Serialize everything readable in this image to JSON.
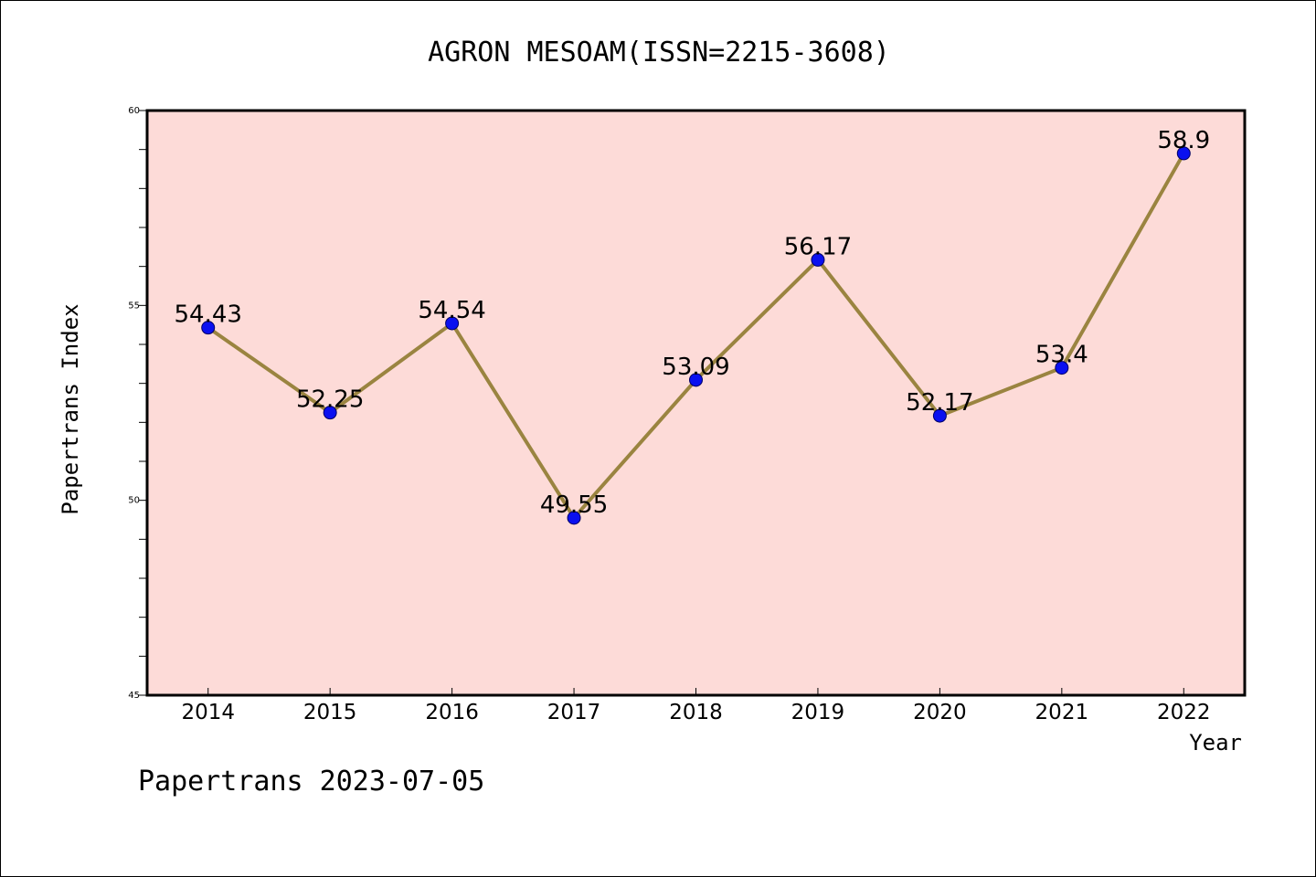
{
  "chart_data": {
    "type": "line",
    "title": "AGRON MESOAM(ISSN=2215-3608)",
    "xlabel": "Year",
    "ylabel": "Papertrans Index",
    "footer": "Papertrans 2023-07-05",
    "categories": [
      "2014",
      "2015",
      "2016",
      "2017",
      "2018",
      "2019",
      "2020",
      "2021",
      "2022"
    ],
    "values": [
      54.43,
      52.25,
      54.54,
      49.55,
      53.09,
      56.17,
      52.17,
      53.4,
      58.9
    ],
    "data_labels": [
      "54.43",
      "52.25",
      "54.54",
      "49.55",
      "53.09",
      "56.17",
      "52.17",
      "53.4",
      "58.9"
    ],
    "ylim": [
      45,
      60
    ],
    "yticks": [
      "45",
      "50",
      "55",
      "60"
    ],
    "grid": false,
    "legend": "none",
    "colors": {
      "plot_background": "#fddbd8",
      "line": "#9a8440",
      "marker": "#0a10f0",
      "marker_edge": "#000066"
    }
  }
}
